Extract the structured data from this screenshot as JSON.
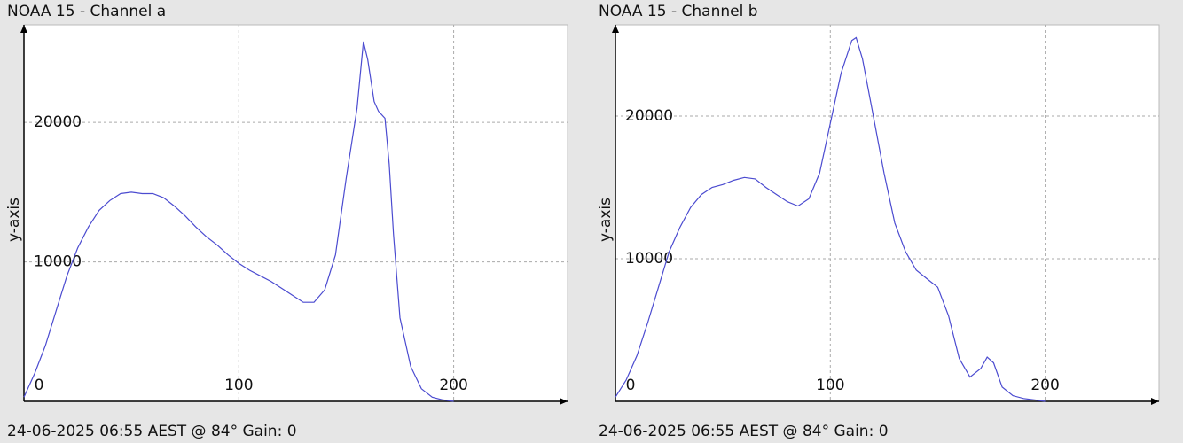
{
  "chart_data": [
    {
      "type": "line",
      "title": "NOAA 15 - Channel a",
      "ylabel": "y-axis",
      "caption": "24-06-2025 06:55 AEST @ 84° Gain: 0",
      "x": [
        0,
        5,
        10,
        15,
        20,
        25,
        30,
        35,
        40,
        45,
        50,
        55,
        60,
        65,
        70,
        75,
        80,
        85,
        90,
        95,
        100,
        105,
        110,
        115,
        120,
        125,
        130,
        135,
        140,
        145,
        150,
        155,
        158,
        160,
        163,
        165,
        168,
        170,
        172,
        175,
        180,
        185,
        190,
        195,
        200
      ],
      "series": [
        {
          "color": "#4b4bd0",
          "values": [
            300,
            2000,
            4000,
            6500,
            9000,
            11000,
            12500,
            13700,
            14400,
            14900,
            15000,
            14900,
            14900,
            14600,
            14000,
            13300,
            12500,
            11800,
            11200,
            10500,
            9900,
            9400,
            9000,
            8600,
            8100,
            7600,
            7100,
            7100,
            8000,
            10500,
            16000,
            21000,
            25800,
            24500,
            21500,
            20800,
            20300,
            17000,
            12000,
            6000,
            2500,
            900,
            300,
            100,
            0
          ]
        }
      ],
      "xlim": [
        0,
        253
      ],
      "ylim": [
        0,
        27000
      ],
      "xticks": [
        0,
        100,
        200
      ],
      "yticks": [
        10000,
        20000
      ],
      "grid": true
    },
    {
      "type": "line",
      "title": "NOAA 15 - Channel b",
      "ylabel": "y-axis",
      "caption": "24-06-2025 06:55 AEST @ 84° Gain: 0",
      "x": [
        0,
        5,
        10,
        15,
        20,
        25,
        30,
        35,
        40,
        45,
        50,
        55,
        60,
        65,
        70,
        75,
        80,
        85,
        90,
        95,
        100,
        105,
        110,
        112,
        115,
        120,
        125,
        130,
        135,
        140,
        145,
        150,
        155,
        160,
        165,
        170,
        173,
        176,
        180,
        185,
        190,
        195,
        200
      ],
      "series": [
        {
          "color": "#4b4bd0",
          "values": [
            300,
            1500,
            3200,
            5500,
            8000,
            10500,
            12200,
            13600,
            14500,
            15000,
            15200,
            15500,
            15700,
            15600,
            15000,
            14500,
            14000,
            13700,
            14200,
            16000,
            19500,
            23000,
            25300,
            25500,
            24000,
            20000,
            16000,
            12500,
            10500,
            9200,
            8600,
            8000,
            6000,
            3000,
            1700,
            2300,
            3100,
            2700,
            1000,
            400,
            200,
            100,
            0
          ]
        }
      ],
      "xlim": [
        0,
        253
      ],
      "ylim": [
        0,
        26400
      ],
      "xticks": [
        0,
        100,
        200
      ],
      "yticks": [
        10000,
        20000
      ],
      "grid": true
    }
  ]
}
